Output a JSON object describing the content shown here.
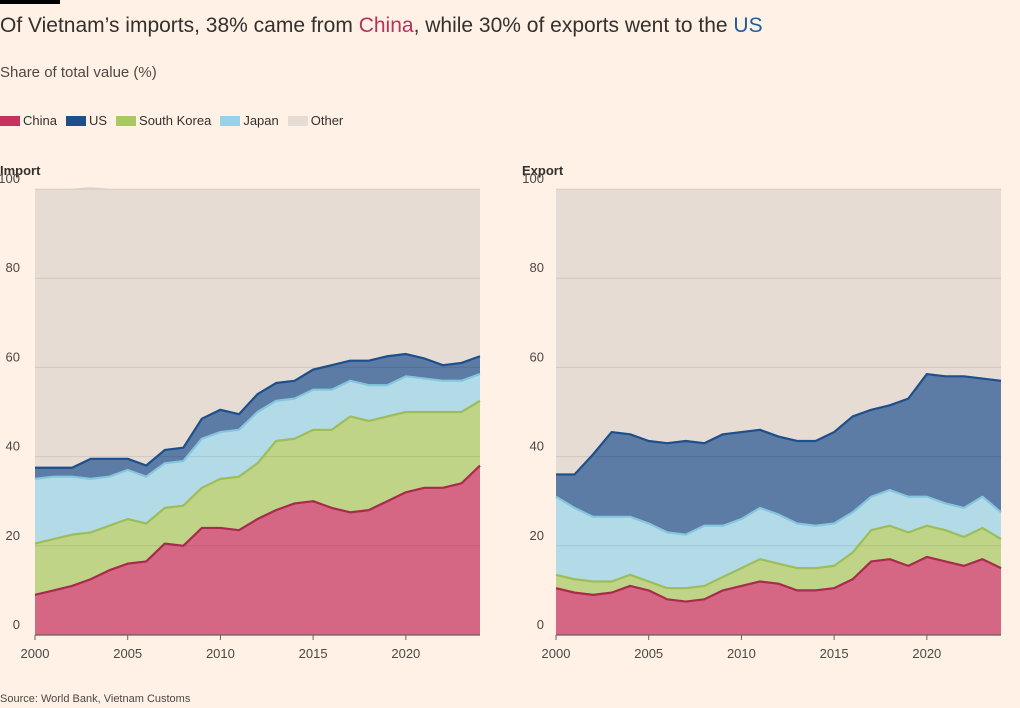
{
  "header": {
    "title_pre": "Of Vietnam’s imports, 38% came from ",
    "title_china": "China",
    "title_mid": ", while 30% of exports went to the ",
    "title_us": "US",
    "subtitle": "Share of total value (%)"
  },
  "legend": [
    {
      "name": "China",
      "color": "#c5325f"
    },
    {
      "name": "US",
      "color": "#1d4f8c"
    },
    {
      "name": "South Korea",
      "color": "#a8c962"
    },
    {
      "name": "Japan",
      "color": "#96d3e8"
    },
    {
      "name": "Other",
      "color": "#e6dcd4"
    }
  ],
  "source": "Source: World Bank, Vietnam Customs",
  "chart_data": [
    {
      "type": "area",
      "stacked": true,
      "title": "Import",
      "x": [
        2000,
        2001,
        2002,
        2003,
        2004,
        2005,
        2006,
        2007,
        2008,
        2009,
        2010,
        2011,
        2012,
        2013,
        2014,
        2015,
        2016,
        2017,
        2018,
        2019,
        2020,
        2021,
        2022,
        2023,
        2024
      ],
      "xticks": [
        "2000",
        "2005",
        "2010",
        "2015",
        "2020"
      ],
      "ylim": [
        0,
        100
      ],
      "yticks": [
        "0",
        "20",
        "40",
        "60",
        "80",
        "100"
      ],
      "grid": true,
      "series": [
        {
          "name": "China",
          "values": [
            9,
            10,
            11,
            12.5,
            14.5,
            16,
            16.5,
            20.5,
            20,
            24,
            24,
            23.5,
            26,
            28,
            29.5,
            30,
            28.5,
            27.5,
            28,
            30,
            32,
            33,
            33,
            34,
            38
          ]
        },
        {
          "name": "South Korea",
          "values": [
            11.5,
            11.5,
            11.5,
            10.5,
            10,
            10,
            8.5,
            8,
            9,
            9,
            11,
            12,
            12.5,
            15.5,
            14.5,
            16,
            17.5,
            21.5,
            20,
            19,
            18,
            17,
            17,
            16,
            14.5
          ]
        },
        {
          "name": "Japan",
          "values": [
            14.5,
            14,
            13,
            12,
            11,
            11,
            10.5,
            10,
            10,
            11,
            10.5,
            10.5,
            11.5,
            9,
            9,
            9,
            9,
            8,
            8,
            7,
            8,
            7.5,
            7,
            7,
            6
          ]
        },
        {
          "name": "US",
          "values": [
            2.5,
            2,
            2,
            4.5,
            4,
            2.5,
            2.5,
            3,
            3,
            4.5,
            5,
            3.5,
            4,
            4,
            4,
            4.5,
            5.5,
            4.5,
            5.5,
            6.5,
            5,
            4.5,
            3.5,
            4,
            4
          ]
        },
        {
          "name": "Other",
          "values": [
            62.5,
            62.5,
            62.5,
            61,
            60.5,
            60.5,
            62,
            58.5,
            58,
            51.5,
            49.5,
            50.5,
            46,
            43.5,
            43,
            40.5,
            39.5,
            38.5,
            38.5,
            37.5,
            37,
            38,
            39.5,
            39,
            37.5
          ]
        }
      ]
    },
    {
      "type": "area",
      "stacked": true,
      "title": "Export",
      "x": [
        2000,
        2001,
        2002,
        2003,
        2004,
        2005,
        2006,
        2007,
        2008,
        2009,
        2010,
        2011,
        2012,
        2013,
        2014,
        2015,
        2016,
        2017,
        2018,
        2019,
        2020,
        2021,
        2022,
        2023,
        2024
      ],
      "xticks": [
        "2000",
        "2005",
        "2010",
        "2015",
        "2020"
      ],
      "ylim": [
        0,
        100
      ],
      "yticks": [
        "0",
        "20",
        "40",
        "60",
        "80",
        "100"
      ],
      "grid": true,
      "series": [
        {
          "name": "China",
          "values": [
            10.5,
            9.5,
            9,
            9.5,
            11,
            10,
            8,
            7.5,
            8,
            10,
            11,
            12,
            11.5,
            10,
            10,
            10.5,
            12.5,
            16.5,
            17,
            15.5,
            17.5,
            16.5,
            15.5,
            17,
            15
          ]
        },
        {
          "name": "South Korea",
          "values": [
            3,
            3,
            3,
            2.5,
            2.5,
            2,
            2.5,
            3,
            3,
            3,
            4,
            5,
            4.5,
            5,
            5,
            5,
            6,
            7,
            7.5,
            7.5,
            7,
            7,
            6.5,
            7,
            6.5
          ]
        },
        {
          "name": "Japan",
          "values": [
            17.5,
            16,
            14.5,
            14.5,
            13,
            13,
            12.5,
            12,
            13.5,
            11.5,
            11,
            11.5,
            11,
            10,
            9.5,
            9.5,
            9,
            7.5,
            8,
            8,
            6.5,
            6,
            6.5,
            7,
            6
          ]
        },
        {
          "name": "US",
          "values": [
            5,
            7.5,
            14,
            19,
            18.5,
            18.5,
            20,
            21,
            18.5,
            20.5,
            19.5,
            17.5,
            17.5,
            18.5,
            19,
            20.5,
            21.5,
            19.5,
            19,
            22,
            27.5,
            28.5,
            29.5,
            26.5,
            29.5
          ]
        },
        {
          "name": "Other",
          "values": [
            64,
            64,
            59.5,
            54.5,
            55,
            56.5,
            57,
            56.5,
            57,
            55,
            54.5,
            54,
            55.5,
            56.5,
            56.5,
            54.5,
            51,
            49.5,
            48.5,
            47,
            41.5,
            42,
            42,
            42.5,
            43
          ]
        }
      ]
    }
  ]
}
